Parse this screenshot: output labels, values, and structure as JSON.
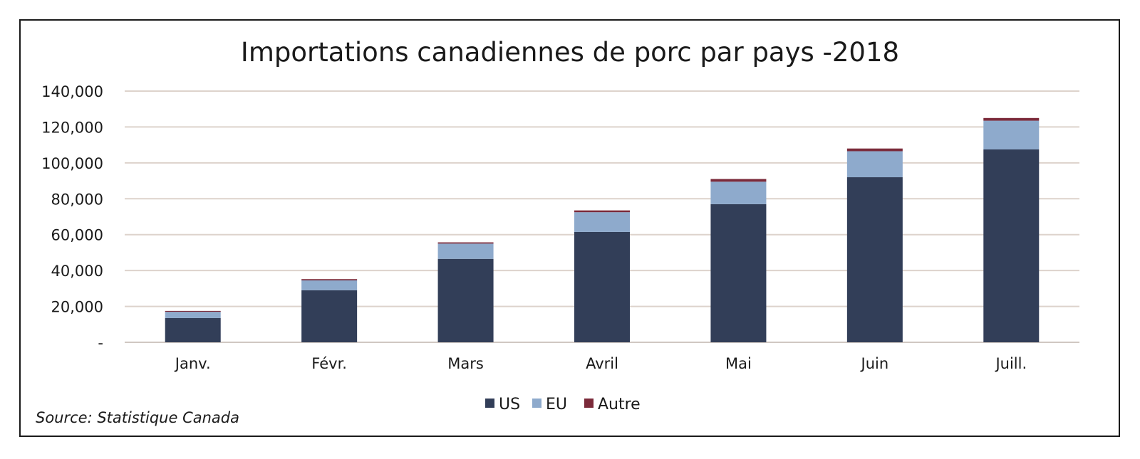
{
  "chart_data": {
    "type": "bar",
    "stacked": true,
    "title": "Importations canadiennes de porc par pays -2018",
    "xlabel": "",
    "ylabel": "",
    "categories": [
      "Janv.",
      "Févr.",
      "Mars",
      "Avril",
      "Mai",
      "Juin",
      "Juill."
    ],
    "series": [
      {
        "name": "US",
        "color": "#323e58",
        "values": [
          13500,
          29000,
          46500,
          61500,
          77000,
          92000,
          107500
        ]
      },
      {
        "name": "EU",
        "color": "#8eaacc",
        "values": [
          3500,
          5500,
          8500,
          11000,
          12500,
          14500,
          16000
        ]
      },
      {
        "name": "Autre",
        "color": "#7b2a3a",
        "values": [
          500,
          700,
          700,
          1000,
          1500,
          1500,
          1500
        ]
      }
    ],
    "ylim": [
      0,
      140000
    ],
    "yticks": [
      0,
      20000,
      40000,
      60000,
      80000,
      100000,
      120000,
      140000
    ],
    "ytick_labels": [
      "-",
      "20,000",
      "40,000",
      "60,000",
      "80,000",
      "100,000",
      "120,000",
      "140,000"
    ],
    "grid": true,
    "legend_position": "bottom"
  },
  "source": "Source: Statistique Canada"
}
